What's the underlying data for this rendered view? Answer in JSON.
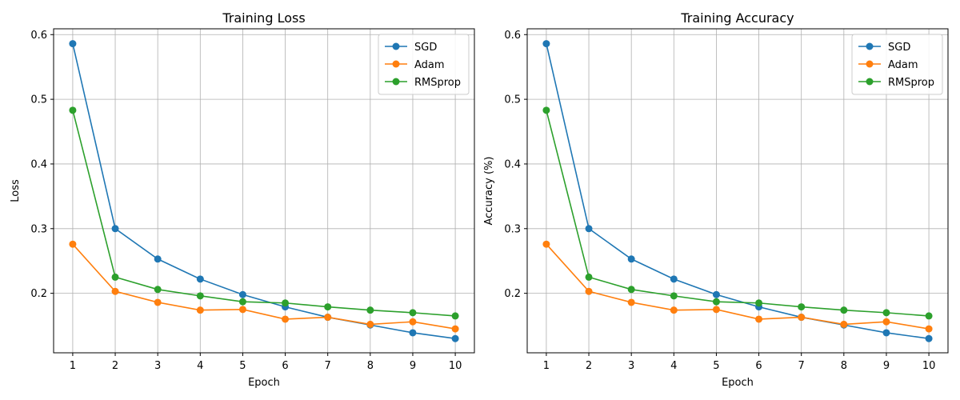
{
  "colors": {
    "SGD": "#1f77b4",
    "Adam": "#ff7f0e",
    "RMSprop": "#2ca02c"
  },
  "chart_data": [
    {
      "type": "line",
      "title": "Training Loss",
      "xlabel": "Epoch",
      "ylabel": "Loss",
      "x": [
        1,
        2,
        3,
        4,
        5,
        6,
        7,
        8,
        9,
        10
      ],
      "xticks": [
        "1",
        "2",
        "3",
        "4",
        "5",
        "6",
        "7",
        "8",
        "9",
        "10"
      ],
      "yticks": [
        "0.2",
        "0.3",
        "0.4",
        "0.5",
        "0.6"
      ],
      "ytick_values": [
        0.2,
        0.3,
        0.4,
        0.5,
        0.6
      ],
      "xlim": [
        0.55,
        10.45
      ],
      "ylim": [
        0.108,
        0.609
      ],
      "grid": true,
      "legend_position": "top-right",
      "series": [
        {
          "name": "SGD",
          "values": [
            0.586,
            0.3,
            0.253,
            0.222,
            0.198,
            0.179,
            0.163,
            0.151,
            0.139,
            0.13
          ]
        },
        {
          "name": "Adam",
          "values": [
            0.276,
            0.203,
            0.186,
            0.174,
            0.175,
            0.16,
            0.163,
            0.152,
            0.156,
            0.145
          ]
        },
        {
          "name": "RMSprop",
          "values": [
            0.483,
            0.225,
            0.206,
            0.196,
            0.187,
            0.185,
            0.179,
            0.174,
            0.17,
            0.165
          ]
        }
      ]
    },
    {
      "type": "line",
      "title": "Training Accuracy",
      "xlabel": "Epoch",
      "ylabel": "Accuracy (%)",
      "x": [
        1,
        2,
        3,
        4,
        5,
        6,
        7,
        8,
        9,
        10
      ],
      "xticks": [
        "1",
        "2",
        "3",
        "4",
        "5",
        "6",
        "7",
        "8",
        "9",
        "10"
      ],
      "yticks": [
        "0.2",
        "0.3",
        "0.4",
        "0.5",
        "0.6"
      ],
      "ytick_values": [
        0.2,
        0.3,
        0.4,
        0.5,
        0.6
      ],
      "xlim": [
        0.55,
        10.45
      ],
      "ylim": [
        0.108,
        0.609
      ],
      "grid": true,
      "legend_position": "top-right",
      "series": [
        {
          "name": "SGD",
          "values": [
            0.586,
            0.3,
            0.253,
            0.222,
            0.198,
            0.179,
            0.163,
            0.151,
            0.139,
            0.13
          ]
        },
        {
          "name": "Adam",
          "values": [
            0.276,
            0.203,
            0.186,
            0.174,
            0.175,
            0.16,
            0.163,
            0.152,
            0.156,
            0.145
          ]
        },
        {
          "name": "RMSprop",
          "values": [
            0.483,
            0.225,
            0.206,
            0.196,
            0.187,
            0.185,
            0.179,
            0.174,
            0.17,
            0.165
          ]
        }
      ]
    }
  ]
}
